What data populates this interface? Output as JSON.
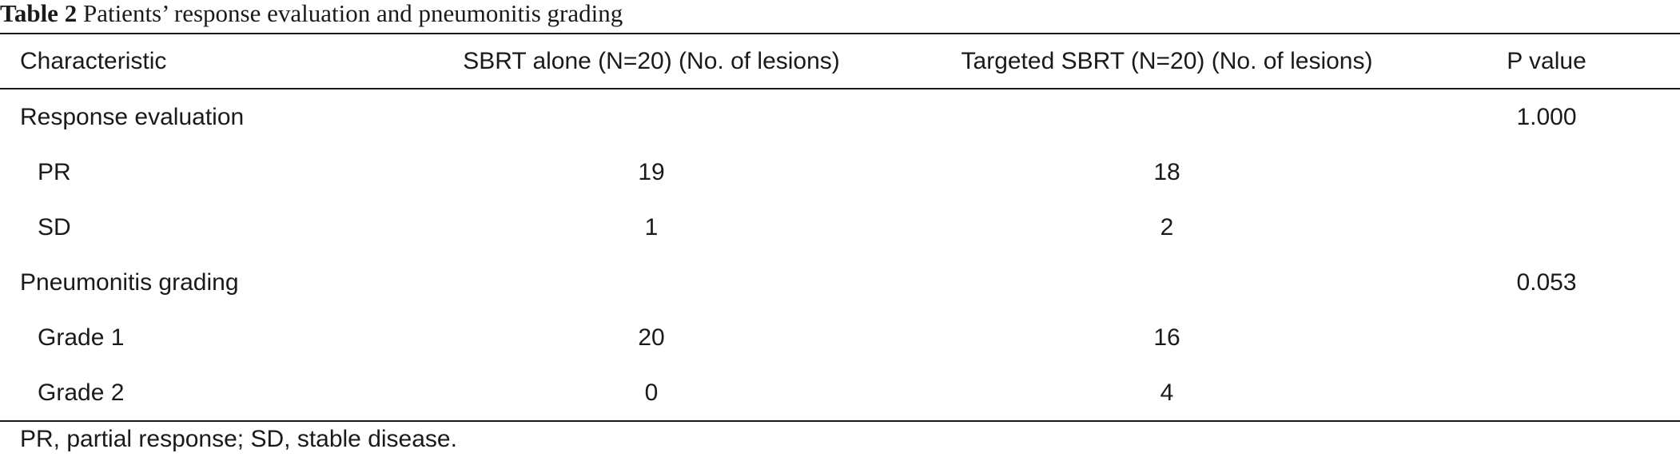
{
  "caption": {
    "label": "Table 2",
    "text": "Patients’ response evaluation and pneumonitis grading"
  },
  "table": {
    "headers": [
      "Characteristic",
      "SBRT alone (N=20) (No. of lesions)",
      "Targeted SBRT (N=20) (No. of lesions)",
      "P value"
    ],
    "rows": [
      {
        "characteristic": "Response evaluation",
        "sbrt_alone": "",
        "targeted_sbrt": "",
        "p_value": "1.000"
      },
      {
        "characteristic": "PR",
        "sbrt_alone": "19",
        "targeted_sbrt": "18",
        "p_value": ""
      },
      {
        "characteristic": "SD",
        "sbrt_alone": "1",
        "targeted_sbrt": "2",
        "p_value": ""
      },
      {
        "characteristic": "Pneumonitis grading",
        "sbrt_alone": "",
        "targeted_sbrt": "",
        "p_value": "0.053"
      },
      {
        "characteristic": "Grade 1",
        "sbrt_alone": "20",
        "targeted_sbrt": "16",
        "p_value": ""
      },
      {
        "characteristic": "Grade 2",
        "sbrt_alone": "0",
        "targeted_sbrt": "4",
        "p_value": ""
      }
    ]
  },
  "footnote": "PR, partial response; SD, stable disease."
}
